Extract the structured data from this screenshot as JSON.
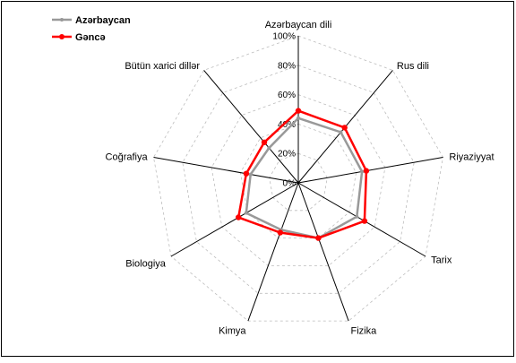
{
  "chart_data": {
    "type": "radar",
    "categories": [
      "Azərbaycan dili",
      "Rus dili",
      "Riyaziyyat",
      "Tarix",
      "Fizika",
      "Kimya",
      "Biologiya",
      "Coğrafiya",
      "Bütün xarici dillər"
    ],
    "ticks": [
      "0%",
      "20%",
      "40%",
      "60%",
      "80%",
      "100%"
    ],
    "rlim": [
      0,
      100
    ],
    "grid": true,
    "legend_position": "top-left",
    "series": [
      {
        "name": "Azərbaycan",
        "color": "#999999",
        "values": [
          44,
          45,
          44,
          46,
          40,
          34,
          41,
          33,
          31
        ]
      },
      {
        "name": "Gəncə",
        "color": "#ff0000",
        "values": [
          49,
          49,
          47,
          52,
          40,
          36,
          47,
          36,
          36
        ]
      }
    ]
  }
}
